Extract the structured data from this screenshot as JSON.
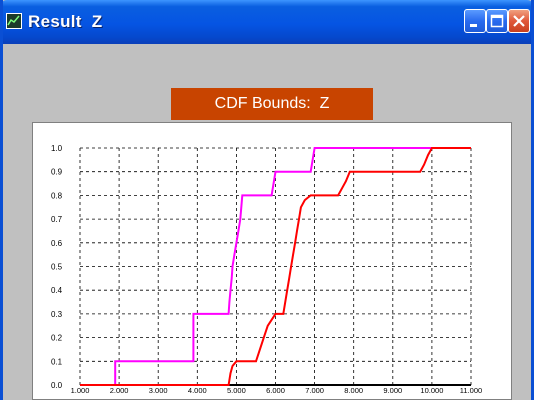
{
  "window": {
    "title": "Result  Z",
    "buttons": {
      "minimize": "minimize",
      "maximize": "maximize",
      "close": "close"
    }
  },
  "chart_data": {
    "type": "line",
    "title": "CDF Bounds:  Z",
    "xlabel": "",
    "ylabel": "",
    "xlim": [
      1.0,
      11.0
    ],
    "ylim": [
      0.0,
      1.0
    ],
    "x_ticks": [
      "1.000",
      "2.000",
      "3.000",
      "4.000",
      "5.000",
      "6.000",
      "7.000",
      "8.000",
      "9.000",
      "10.000",
      "11.000"
    ],
    "y_ticks": [
      "0.0",
      "0.1",
      "0.2",
      "0.3",
      "0.4",
      "0.5",
      "0.6",
      "0.7",
      "0.8",
      "0.9",
      "1.0"
    ],
    "grid": true,
    "series": [
      {
        "color": "#FF00FF",
        "x": [
          1.0,
          1.9,
          1.9,
          3.9,
          3.9,
          4.8,
          4.82,
          4.85,
          4.88,
          4.9,
          4.95,
          5.0,
          5.05,
          5.1,
          5.15,
          5.9,
          6.0,
          6.9,
          7.0,
          11.0
        ],
        "y": [
          0.0,
          0.0,
          0.1,
          0.1,
          0.3,
          0.3,
          0.35,
          0.4,
          0.45,
          0.5,
          0.55,
          0.6,
          0.65,
          0.7,
          0.8,
          0.8,
          0.9,
          0.9,
          1.0,
          1.0
        ]
      },
      {
        "color": "#FF0000",
        "x": [
          1.0,
          4.8,
          4.85,
          4.9,
          5.0,
          5.5,
          5.6,
          5.7,
          5.8,
          6.0,
          6.2,
          6.3,
          6.35,
          6.4,
          6.45,
          6.5,
          6.55,
          6.6,
          6.65,
          6.75,
          6.9,
          7.6,
          7.7,
          7.8,
          7.9,
          9.7,
          9.8,
          9.9,
          10.0,
          11.0
        ],
        "y": [
          0.0,
          0.0,
          0.05,
          0.08,
          0.1,
          0.1,
          0.15,
          0.2,
          0.25,
          0.3,
          0.3,
          0.4,
          0.45,
          0.5,
          0.55,
          0.6,
          0.65,
          0.7,
          0.75,
          0.78,
          0.8,
          0.8,
          0.83,
          0.86,
          0.9,
          0.9,
          0.93,
          0.97,
          1.0,
          1.0
        ]
      }
    ]
  }
}
